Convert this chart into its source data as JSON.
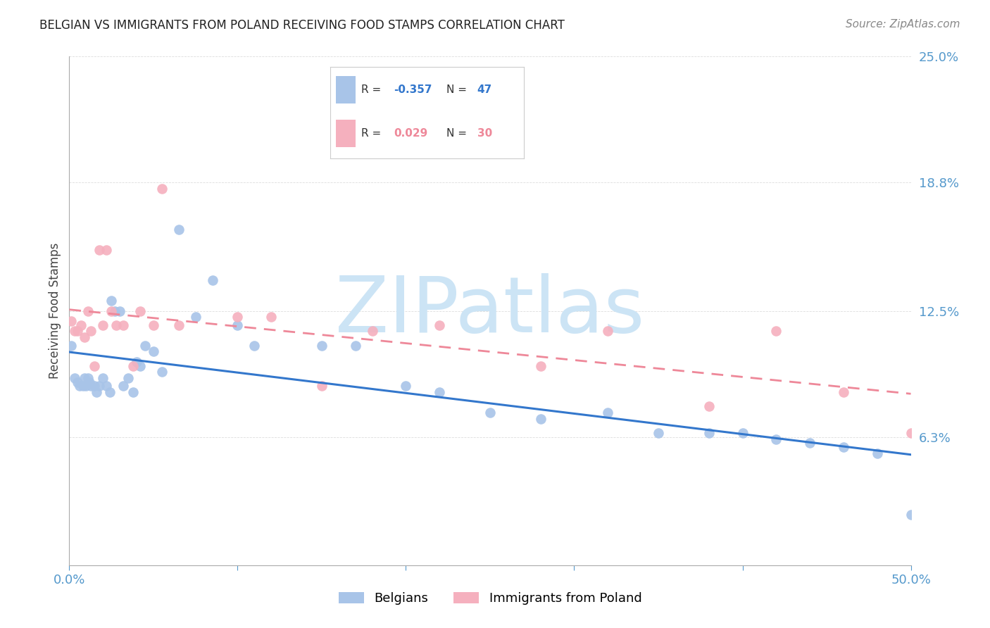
{
  "title": "BELGIAN VS IMMIGRANTS FROM POLAND RECEIVING FOOD STAMPS CORRELATION CHART",
  "source": "Source: ZipAtlas.com",
  "ylabel": "Receiving Food Stamps",
  "xlim": [
    0.0,
    0.5
  ],
  "ylim": [
    0.0,
    0.25
  ],
  "ytick_vals": [
    0.0,
    0.063,
    0.125,
    0.188,
    0.25
  ],
  "ytick_labels": [
    "",
    "6.3%",
    "12.5%",
    "18.8%",
    "25.0%"
  ],
  "xtick_vals": [
    0.0,
    0.1,
    0.2,
    0.3,
    0.4,
    0.5
  ],
  "xtick_labels": [
    "0.0%",
    "",
    "",
    "",
    "",
    "50.0%"
  ],
  "background_color": "#ffffff",
  "watermark": "ZIPatlas",
  "watermark_color": "#cce4f5",
  "belgian_color": "#a8c4e8",
  "poland_color": "#f5b0be",
  "belgian_line_color": "#3377cc",
  "poland_line_color": "#ee8899",
  "tick_color": "#5599cc",
  "grid_color": "#dddddd",
  "belgians_x": [
    0.001,
    0.003,
    0.005,
    0.006,
    0.008,
    0.009,
    0.01,
    0.011,
    0.012,
    0.013,
    0.015,
    0.016,
    0.018,
    0.02,
    0.022,
    0.024,
    0.025,
    0.027,
    0.03,
    0.032,
    0.035,
    0.038,
    0.04,
    0.042,
    0.045,
    0.05,
    0.055,
    0.065,
    0.075,
    0.085,
    0.1,
    0.11,
    0.15,
    0.17,
    0.2,
    0.22,
    0.25,
    0.28,
    0.32,
    0.35,
    0.38,
    0.4,
    0.42,
    0.44,
    0.46,
    0.48,
    0.5
  ],
  "belgians_y": [
    0.108,
    0.092,
    0.09,
    0.088,
    0.088,
    0.092,
    0.088,
    0.092,
    0.09,
    0.088,
    0.088,
    0.085,
    0.088,
    0.092,
    0.088,
    0.085,
    0.13,
    0.125,
    0.125,
    0.088,
    0.092,
    0.085,
    0.1,
    0.098,
    0.108,
    0.105,
    0.095,
    0.165,
    0.122,
    0.14,
    0.118,
    0.108,
    0.108,
    0.108,
    0.088,
    0.085,
    0.075,
    0.072,
    0.075,
    0.065,
    0.065,
    0.065,
    0.062,
    0.06,
    0.058,
    0.055,
    0.025
  ],
  "poland_x": [
    0.001,
    0.003,
    0.005,
    0.007,
    0.009,
    0.011,
    0.013,
    0.015,
    0.018,
    0.02,
    0.022,
    0.025,
    0.028,
    0.032,
    0.038,
    0.042,
    0.05,
    0.055,
    0.065,
    0.1,
    0.12,
    0.15,
    0.18,
    0.22,
    0.28,
    0.32,
    0.38,
    0.42,
    0.46,
    0.5
  ],
  "poland_y": [
    0.12,
    0.115,
    0.115,
    0.118,
    0.112,
    0.125,
    0.115,
    0.098,
    0.155,
    0.118,
    0.155,
    0.125,
    0.118,
    0.118,
    0.098,
    0.125,
    0.118,
    0.185,
    0.118,
    0.122,
    0.122,
    0.088,
    0.115,
    0.118,
    0.098,
    0.115,
    0.078,
    0.115,
    0.085,
    0.065
  ]
}
